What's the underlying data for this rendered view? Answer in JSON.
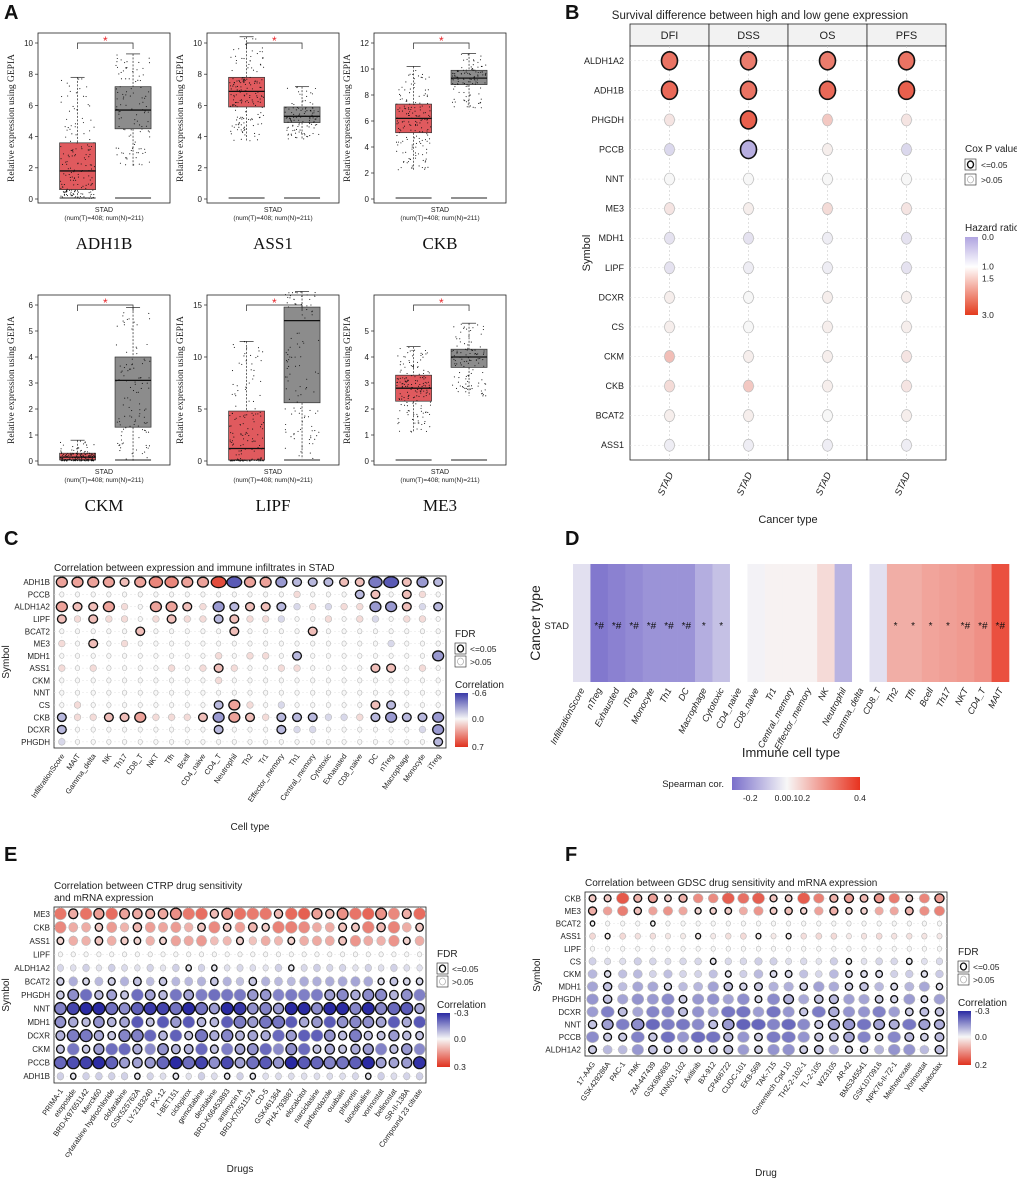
{
  "panel_letters": [
    "A",
    "B",
    "C",
    "D",
    "E",
    "F"
  ],
  "colors": {
    "tumor": "#e05a5e",
    "normal": "#8c8c8c",
    "star": "#e8262b",
    "neg": "#3b3bb0",
    "mid": "#f7f7f7",
    "pos": "#e8331f"
  },
  "chart_data": [
    {
      "id": "A",
      "type": "box",
      "ylabel": "Relative expression using GEPIA",
      "group_label": "STAD",
      "count_label": "(num(T)=408; num(N)=211)",
      "significance": "*",
      "plots": [
        {
          "gene": "ADH1B",
          "ylim": [
            0,
            10
          ],
          "yticks": [
            0,
            2,
            4,
            6,
            8,
            10
          ],
          "tumor": {
            "min": 0,
            "q1": 0.6,
            "median": 1.8,
            "q3": 3.6,
            "max": 7.8
          },
          "normal": {
            "min": 2.1,
            "q1": 4.5,
            "median": 5.7,
            "q3": 7.2,
            "max": 9.3
          }
        },
        {
          "gene": "ASS1",
          "ylim": [
            0,
            10
          ],
          "yticks": [
            0,
            2,
            4,
            6,
            8,
            10
          ],
          "tumor": {
            "min": 3.7,
            "q1": 5.9,
            "median": 6.9,
            "q3": 7.8,
            "max": 10.4
          },
          "normal": {
            "min": 3.8,
            "q1": 4.9,
            "median": 5.3,
            "q3": 5.9,
            "max": 7.2
          }
        },
        {
          "gene": "CKB",
          "ylim": [
            0,
            12
          ],
          "yticks": [
            0,
            2,
            4,
            6,
            8,
            10,
            12
          ],
          "tumor": {
            "min": 2.2,
            "q1": 5.1,
            "median": 6.2,
            "q3": 7.3,
            "max": 10.2
          },
          "normal": {
            "min": 7.0,
            "q1": 8.8,
            "median": 9.3,
            "q3": 9.9,
            "max": 11.2
          }
        },
        {
          "gene": "CKM",
          "ylim": [
            0,
            6
          ],
          "yticks": [
            0,
            1,
            2,
            3,
            4,
            5,
            6
          ],
          "tumor": {
            "min": 0,
            "q1": 0.05,
            "median": 0.15,
            "q3": 0.3,
            "max": 0.8
          },
          "normal": {
            "min": 0,
            "q1": 1.3,
            "median": 3.1,
            "q3": 4.0,
            "max": 5.9
          }
        },
        {
          "gene": "LIPF",
          "ylim": [
            0,
            15
          ],
          "yticks": [
            0,
            5,
            10,
            15
          ],
          "tumor": {
            "min": 0,
            "q1": 0.1,
            "median": 1.2,
            "q3": 4.8,
            "max": 11.5
          },
          "normal": {
            "min": 0.2,
            "q1": 5.6,
            "median": 13.5,
            "q3": 14.8,
            "max": 16.3
          }
        },
        {
          "gene": "ME3",
          "ylim": [
            0,
            6
          ],
          "yticks": [
            0,
            1,
            2,
            3,
            4,
            5
          ],
          "tumor": {
            "min": 1.1,
            "q1": 2.3,
            "median": 2.8,
            "q3": 3.3,
            "max": 4.4
          },
          "normal": {
            "min": 2.5,
            "q1": 3.6,
            "median": 4.0,
            "q3": 4.3,
            "max": 5.3
          }
        }
      ]
    },
    {
      "id": "B",
      "type": "bubble",
      "title": "Survival difference between high and low gene expression",
      "columns": [
        "DFI",
        "DSS",
        "OS",
        "PFS"
      ],
      "xlabel": "Cancer type",
      "ylabel": "Symbol",
      "x_tick": "STAD",
      "rows": [
        "ALDH1A2",
        "ADH1B",
        "PHGDH",
        "PCCB",
        "NNT",
        "ME3",
        "MDH1",
        "LIPF",
        "DCXR",
        "CS",
        "CKM",
        "CKB",
        "BCAT2",
        "ASS1"
      ],
      "hazard": [
        [
          2.4,
          2.3,
          2.3,
          2.4
        ],
        [
          2.5,
          2.4,
          2.5,
          2.6
        ],
        [
          1.2,
          2.6,
          1.5,
          1.2
        ],
        [
          0.7,
          0.3,
          1.1,
          0.7
        ],
        [
          1.0,
          1.0,
          1.0,
          1.0
        ],
        [
          1.2,
          1.1,
          1.3,
          1.2
        ],
        [
          0.8,
          0.8,
          0.9,
          0.8
        ],
        [
          0.8,
          0.9,
          0.9,
          0.8
        ],
        [
          1.1,
          1.0,
          1.1,
          1.1
        ],
        [
          1.1,
          1.0,
          1.1,
          1.1
        ],
        [
          1.6,
          1.1,
          1.1,
          1.2
        ],
        [
          1.3,
          1.5,
          1.1,
          1.2
        ],
        [
          1.1,
          1.1,
          1.0,
          1.1
        ],
        [
          0.9,
          0.9,
          0.9,
          0.9
        ]
      ],
      "sig": [
        [
          1,
          1,
          1,
          1
        ],
        [
          1,
          1,
          1,
          1
        ],
        [
          0,
          1,
          0,
          0
        ],
        [
          0,
          1,
          0,
          0
        ],
        [
          0,
          0,
          0,
          0
        ],
        [
          0,
          0,
          0,
          0
        ],
        [
          0,
          0,
          0,
          0
        ],
        [
          0,
          0,
          0,
          0
        ],
        [
          0,
          0,
          0,
          0
        ],
        [
          0,
          0,
          0,
          0
        ],
        [
          0,
          0,
          0,
          0
        ],
        [
          0,
          0,
          0,
          0
        ],
        [
          0,
          0,
          0,
          0
        ],
        [
          0,
          0,
          0,
          0
        ]
      ],
      "legend": {
        "p_title": "Cox P value",
        "p_sig": "<=0.05",
        "p_ns": ">0.05",
        "hr_title": "Hazard ratio",
        "hr_ticks": [
          "0.0",
          "1.0",
          "1.5",
          "3.0"
        ],
        "hr_values": [
          0,
          1,
          1.5,
          3
        ]
      }
    },
    {
      "id": "C",
      "type": "bubble",
      "title": "Correlation between expression and immune infiltrates in STAD",
      "xlabel": "Cell type",
      "ylabel": "Symbol",
      "rows": [
        "ADH1B",
        "PCCB",
        "ALDH1A2",
        "LIPF",
        "BCAT2",
        "ME3",
        "MDH1",
        "ASS1",
        "CKM",
        "NNT",
        "CS",
        "CKB",
        "DCXR",
        "PHGDH"
      ],
      "columns": [
        "InfiltrationScore",
        "MAIT",
        "Gamma_delta",
        "NK",
        "Th17",
        "CD8_T",
        "NKT",
        "Tfh",
        "Bcell",
        "CD4_naive",
        "CD4_T",
        "Neutrophil",
        "Th2",
        "Tr1",
        "Effector_memory",
        "Th1",
        "Central_memory",
        "Cytotoxic",
        "Exhausted",
        "CD8_naive",
        "DC",
        "nTreg",
        "Macrophage",
        "Monocyte",
        "iTreg"
      ],
      "corr": [
        [
          0.3,
          0.3,
          0.3,
          0.3,
          0.2,
          0.3,
          0.4,
          0.4,
          0.3,
          0.3,
          0.6,
          -0.5,
          0.3,
          0.3,
          -0.3,
          -0.2,
          -0.2,
          -0.2,
          0.2,
          0.2,
          -0.4,
          -0.5,
          0.2,
          -0.3,
          -0.2
        ],
        [
          0.0,
          0.0,
          0.0,
          0.0,
          0.0,
          0.0,
          0.0,
          0.0,
          0.0,
          0.0,
          0.0,
          0.0,
          0.0,
          0.0,
          0.0,
          0.1,
          0.0,
          0.0,
          0.0,
          -0.2,
          0.2,
          0.0,
          0.2,
          0.1,
          0.0
        ],
        [
          0.3,
          0.2,
          0.2,
          0.3,
          0.1,
          0.0,
          0.3,
          0.3,
          0.2,
          0.1,
          -0.3,
          -0.2,
          0.2,
          0.2,
          -0.2,
          -0.1,
          0.1,
          -0.1,
          0.1,
          0.1,
          -0.3,
          -0.3,
          0.2,
          -0.1,
          -0.2
        ],
        [
          0.2,
          0.1,
          0.2,
          0.1,
          0.1,
          0.0,
          0.1,
          0.2,
          0.1,
          0.1,
          -0.2,
          0.2,
          0.1,
          0.1,
          -0.1,
          0.0,
          0.0,
          0.1,
          0.0,
          0.1,
          -0.1,
          0.0,
          0.1,
          0.1,
          0.0
        ],
        [
          0.0,
          0.0,
          0.0,
          0.0,
          0.0,
          0.2,
          0.0,
          0.0,
          0.0,
          0.0,
          0.0,
          0.2,
          0.0,
          0.0,
          0.0,
          0.0,
          0.2,
          0.0,
          0.0,
          0.0,
          0.0,
          0.0,
          0.0,
          0.0,
          0.0
        ],
        [
          0.1,
          0.0,
          0.2,
          0.0,
          0.1,
          0.0,
          0.0,
          0.0,
          0.0,
          0.0,
          0.0,
          0.0,
          0.0,
          0.0,
          0.0,
          0.0,
          0.0,
          0.0,
          0.0,
          0.0,
          0.0,
          -0.1,
          0.0,
          0.0,
          0.0
        ],
        [
          0.0,
          0.0,
          0.0,
          0.0,
          0.0,
          0.0,
          0.0,
          0.0,
          0.0,
          0.0,
          0.1,
          0.0,
          0.1,
          0.1,
          0.0,
          -0.2,
          0.0,
          0.0,
          0.0,
          0.0,
          0.0,
          0.0,
          0.0,
          0.0,
          -0.3
        ],
        [
          0.1,
          0.0,
          0.1,
          0.0,
          0.0,
          0.0,
          0.0,
          0.1,
          0.0,
          0.1,
          0.2,
          0.1,
          0.0,
          0.0,
          0.1,
          0.1,
          0.0,
          0.0,
          0.0,
          0.0,
          0.2,
          0.2,
          0.0,
          0.1,
          0.0
        ],
        [
          0.0,
          0.0,
          0.0,
          0.0,
          0.0,
          0.0,
          0.0,
          0.0,
          0.0,
          0.0,
          0.1,
          0.0,
          0.0,
          0.0,
          0.0,
          0.0,
          0.0,
          0.0,
          0.0,
          0.0,
          0.0,
          0.0,
          0.0,
          0.0,
          0.0
        ],
        [
          0.0,
          0.0,
          0.0,
          0.0,
          0.0,
          0.0,
          0.0,
          0.0,
          0.0,
          0.0,
          0.0,
          0.0,
          0.0,
          0.0,
          0.0,
          0.0,
          0.0,
          0.0,
          0.0,
          0.0,
          0.0,
          0.0,
          0.0,
          0.0,
          0.0
        ],
        [
          0.0,
          0.1,
          0.0,
          0.0,
          0.0,
          0.0,
          0.0,
          0.0,
          0.0,
          0.0,
          -0.2,
          0.3,
          0.1,
          0.0,
          -0.1,
          0.0,
          0.0,
          0.0,
          0.0,
          0.0,
          0.2,
          -0.2,
          0.0,
          0.0,
          0.0
        ],
        [
          -0.2,
          0.1,
          0.1,
          0.2,
          0.2,
          0.3,
          0.1,
          0.1,
          0.1,
          0.2,
          -0.3,
          0.3,
          0.2,
          0.1,
          -0.2,
          -0.2,
          -0.2,
          -0.1,
          -0.1,
          0.1,
          -0.2,
          -0.3,
          -0.2,
          -0.2,
          -0.3
        ],
        [
          -0.2,
          0.0,
          0.0,
          0.0,
          0.0,
          0.0,
          0.0,
          0.0,
          0.0,
          0.0,
          -0.2,
          0.0,
          0.0,
          0.0,
          -0.2,
          -0.1,
          -0.1,
          0.0,
          0.0,
          0.0,
          0.0,
          0.0,
          0.0,
          -0.1,
          -0.3
        ],
        [
          -0.1,
          0.0,
          0.0,
          0.0,
          0.0,
          0.0,
          0.0,
          0.0,
          0.0,
          0.0,
          0.0,
          0.0,
          0.0,
          0.0,
          0.0,
          0.0,
          0.0,
          0.0,
          0.0,
          0.0,
          0.0,
          0.0,
          0.0,
          0.0,
          -0.2
        ]
      ],
      "legend": {
        "fdr_title": "FDR",
        "fdr_sig": "<=0.05",
        "fdr_ns": ">0.05",
        "corr_title": "Correlation",
        "corr_ticks": [
          "-0.6",
          "0.0",
          "0.7"
        ],
        "corr_values": [
          -0.6,
          0,
          0.7
        ]
      }
    },
    {
      "id": "D",
      "type": "heatmap",
      "ylabel": "Cancer type",
      "xlabel": "Immune cell type",
      "row": "STAD",
      "columns": [
        "InfiltrationScore",
        "nTreg",
        "Exhausted",
        "iTreg",
        "Monocyte",
        "Th1",
        "DC",
        "Macrophage",
        "Cytotoxic",
        "CD4_naive",
        "CD8_naive",
        "Tr1",
        "Central_memory",
        "Effector_memory",
        "NK",
        "Neutrophil",
        "Gamma_delta",
        "CD8_T",
        "Th2",
        "Tfh",
        "Bcell",
        "Th17",
        "NKT",
        "CD4_T",
        "MAIT"
      ],
      "values": [
        -0.05,
        -0.28,
        -0.26,
        -0.24,
        -0.22,
        -0.22,
        -0.22,
        -0.16,
        -0.12,
        -0.03,
        -0.01,
        0.01,
        0.01,
        0.01,
        0.06,
        -0.15,
        0.0,
        -0.05,
        0.15,
        0.15,
        0.17,
        0.18,
        0.19,
        0.21,
        0.34
      ],
      "marks": [
        "",
        "*#",
        "*#",
        "*#",
        "*#",
        "*#",
        "*#",
        "*",
        "*",
        "",
        "",
        "",
        "",
        "",
        "",
        "",
        "",
        "",
        "*",
        "*",
        "*",
        "*",
        "*#",
        "*#",
        "*#"
      ],
      "missing": [
        false,
        false,
        false,
        false,
        false,
        false,
        false,
        false,
        false,
        true,
        false,
        false,
        false,
        false,
        false,
        false,
        true,
        false,
        false,
        false,
        false,
        false,
        false,
        false,
        false
      ],
      "legend": {
        "title": "Spearman cor.",
        "ticks": [
          "-0.2",
          "0.0",
          "0.1",
          "0.2",
          "0.4"
        ],
        "tick_values": [
          -0.2,
          0.0,
          0.1,
          0.2,
          0.4
        ],
        "range": [
          -0.3,
          0.4
        ]
      }
    },
    {
      "id": "E",
      "type": "bubble",
      "title": "Correlation between CTRP drug sensitivity and mRNA expression",
      "xlabel": "Drugs",
      "ylabel": "Symbol",
      "rows": [
        "ME3",
        "CKB",
        "ASS1",
        "LIPF",
        "ALDH1A2",
        "BCAT2",
        "PHGDH",
        "NNT",
        "MDH1",
        "DCXR",
        "CKM",
        "PCCB",
        "ADH1B"
      ],
      "columns": [
        "PRIMA-1",
        "etoposide",
        "BRD-K97651142",
        "Merck60",
        "cytarabine hydrochloride",
        "clofarabine",
        "GSK525762A",
        "LY-2183240",
        "PX-12",
        "I-BET151",
        "ciclopirox",
        "gemcitabine",
        "decitabine",
        "BRD-K66453893",
        "antimycin A",
        "BRD-K70511574",
        "CD-5",
        "GSK461364",
        "PHA-793887",
        "elocalcitol",
        "narciclasine",
        "parbendazole",
        "ouabain",
        "phloretin",
        "tacedinaline",
        "vorinostat",
        "belinostat",
        "SR-II-138A",
        "Compound 23 citrate"
      ],
      "row_profile": [
        0.16,
        0.12,
        0.1,
        0.0,
        -0.04,
        -0.08,
        -0.14,
        -0.24,
        -0.16,
        -0.15,
        -0.14,
        -0.24,
        -0.04
      ],
      "row_sigrate": [
        0.5,
        0.35,
        0.3,
        0.0,
        0.1,
        0.5,
        0.7,
        1.0,
        0.8,
        0.8,
        0.6,
        1.0,
        0.2
      ],
      "legend": {
        "fdr_title": "FDR",
        "fdr_sig": "<=0.05",
        "fdr_ns": ">0.05",
        "corr_title": "Correlation",
        "corr_ticks": [
          "-0.3",
          "0.0",
          "0.3"
        ],
        "corr_values": [
          -0.3,
          0,
          0.3
        ]
      }
    },
    {
      "id": "F",
      "type": "bubble",
      "title": "Correlation between GDSC drug sensitivity and mRNA expression",
      "xlabel": "Drug",
      "ylabel": "Symbol",
      "rows": [
        "CKB",
        "ME3",
        "BCAT2",
        "ASS1",
        "LIPF",
        "CS",
        "CKM",
        "MDH1",
        "PHGDH",
        "DCXR",
        "NNT",
        "PCCB",
        "ALDH1A2"
      ],
      "columns": [
        "17-AAG",
        "GSK429286A",
        "PAC-1",
        "FMK",
        "ZM-447439",
        "GSK690693",
        "KIN001-102",
        "Axitinib",
        "BX-912",
        "CP466722",
        "CUDC-101",
        "EKB-569",
        "TAK-715",
        "Genentech Cpd 10",
        "THZ-2-102-1",
        "TL-2-105",
        "WZ3105",
        "AR-42",
        "BMS345541",
        "GSK1070916",
        "NPK76-II-72-1",
        "Methotrexate",
        "Vorinostat",
        "Navitoclax"
      ],
      "row_profile": [
        0.1,
        0.08,
        0.0,
        0.02,
        0.0,
        -0.04,
        -0.06,
        -0.08,
        -0.1,
        -0.12,
        -0.14,
        -0.13,
        -0.1
      ],
      "row_sigrate": [
        0.5,
        0.45,
        0.05,
        0.15,
        0.05,
        0.2,
        0.3,
        0.5,
        0.6,
        0.5,
        0.6,
        0.5,
        0.4
      ],
      "legend": {
        "fdr_title": "FDR",
        "fdr_sig": "<=0.05",
        "fdr_ns": ">0.05",
        "corr_title": "Correlation",
        "corr_ticks": [
          "-0.3",
          "0.0",
          "0.2"
        ],
        "corr_values": [
          -0.3,
          0,
          0.2
        ]
      }
    }
  ]
}
